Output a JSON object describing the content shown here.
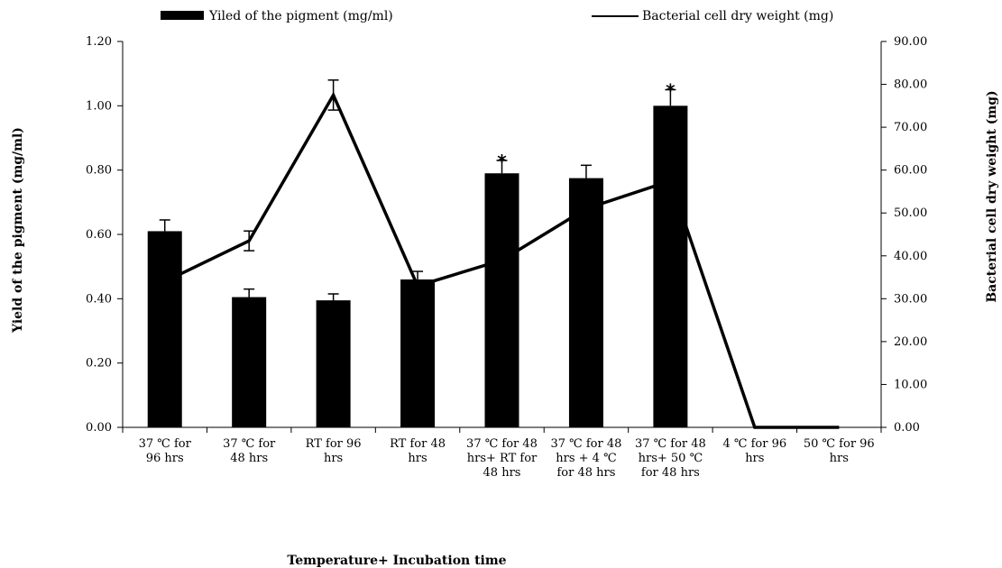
{
  "chart_data": {
    "type": "bar",
    "categories": [
      [
        "37 ℃ for",
        "96 hrs"
      ],
      [
        "37 ℃ for",
        "48 hrs"
      ],
      [
        "RT for 96",
        "hrs"
      ],
      [
        "RT for 48",
        "hrs"
      ],
      [
        "37 ℃ for 48",
        "hrs+ RT for",
        "48 hrs"
      ],
      [
        "37 ℃ for 48",
        "hrs + 4 ℃",
        "for 48 hrs"
      ],
      [
        "37 ℃ for 48",
        "hrs+ 50 ℃",
        "for 48 hrs"
      ],
      [
        "4 ℃ for 96",
        "hrs"
      ],
      [
        "50 ℃ for 96",
        "hrs"
      ]
    ],
    "series": [
      {
        "name": "Yiled of the pigment (mg/ml)",
        "type": "bar",
        "axis": "left",
        "color": "#000000",
        "values": [
          0.61,
          0.405,
          0.395,
          0.46,
          0.79,
          0.775,
          1.0,
          0,
          0
        ],
        "errors": [
          0.035,
          0.025,
          0.02,
          0.025,
          0.04,
          0.04,
          0.05,
          0,
          0
        ],
        "significant": [
          false,
          false,
          false,
          false,
          true,
          false,
          true,
          false,
          false
        ]
      },
      {
        "name": "Bacterial cell dry weight (mg)",
        "type": "line",
        "axis": "right",
        "color": "#000000",
        "values": [
          34,
          43.5,
          77.5,
          33,
          39,
          51,
          57.5,
          0,
          0
        ],
        "errors": [
          0,
          2.3,
          3.5,
          0,
          0,
          0,
          0,
          0,
          0
        ]
      }
    ],
    "left_axis": {
      "title": "Yield of the pigment (mg/ml)",
      "ticks": [
        "0.00",
        "0.20",
        "0.40",
        "0.60",
        "0.80",
        "1.00",
        "1.20"
      ],
      "ylim": [
        0,
        1.2
      ]
    },
    "right_axis": {
      "title": "Bacterial cell dry weight (mg)",
      "ticks": [
        "0.00",
        "10.00",
        "20.00",
        "30.00",
        "40.00",
        "50.00",
        "60.00",
        "70.00",
        "80.00",
        "90.00"
      ],
      "ylim": [
        0,
        90
      ]
    },
    "xlabel": "Temperature+ Incubation time",
    "legend_position": "top",
    "significance_marker": "*"
  }
}
